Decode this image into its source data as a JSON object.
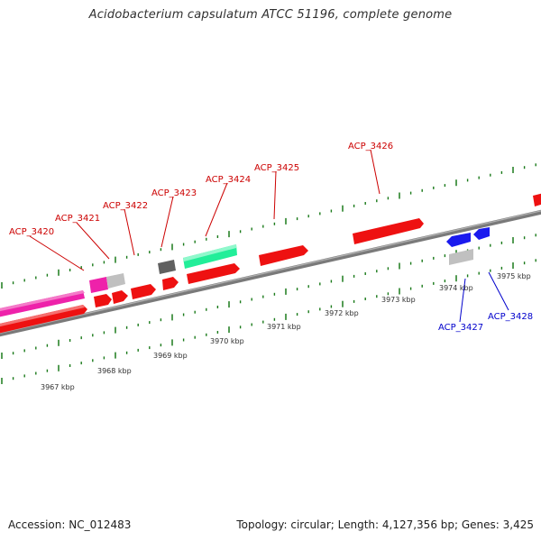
{
  "title": "Acidobacterium capsulatum ATCC 51196, complete genome",
  "footer": {
    "accession": "Accession: NC_012483",
    "topology": "Topology: circular; Length: 4,127,356 bp; Genes: 3,425"
  },
  "colors": {
    "backbone": "#8a8a8a",
    "plus_label": "#cc0000",
    "minus_label": "#0000cc",
    "ruler": "#1a7a1a",
    "cds_red": "#ee1111",
    "cds_magenta": "#ee22aa",
    "cds_grey": "#c0c0c0",
    "cds_dark": "#606060",
    "cds_teal": "#22ee99",
    "cds_blue": "#1a1aee"
  },
  "scale_ticks": [
    "3967 kbp",
    "3968 kbp",
    "3969 kbp",
    "3970 kbp",
    "3971 kbp",
    "3972 kbp",
    "3973 kbp",
    "3974 kbp",
    "3975 kbp"
  ],
  "gene_labels": {
    "plus": [
      "ACP_3420",
      "ACP_3421",
      "ACP_3422",
      "ACP_3423",
      "ACP_3424",
      "ACP_3425",
      "ACP_3426"
    ],
    "minus": [
      "ACP_3427",
      "ACP_3428"
    ]
  }
}
